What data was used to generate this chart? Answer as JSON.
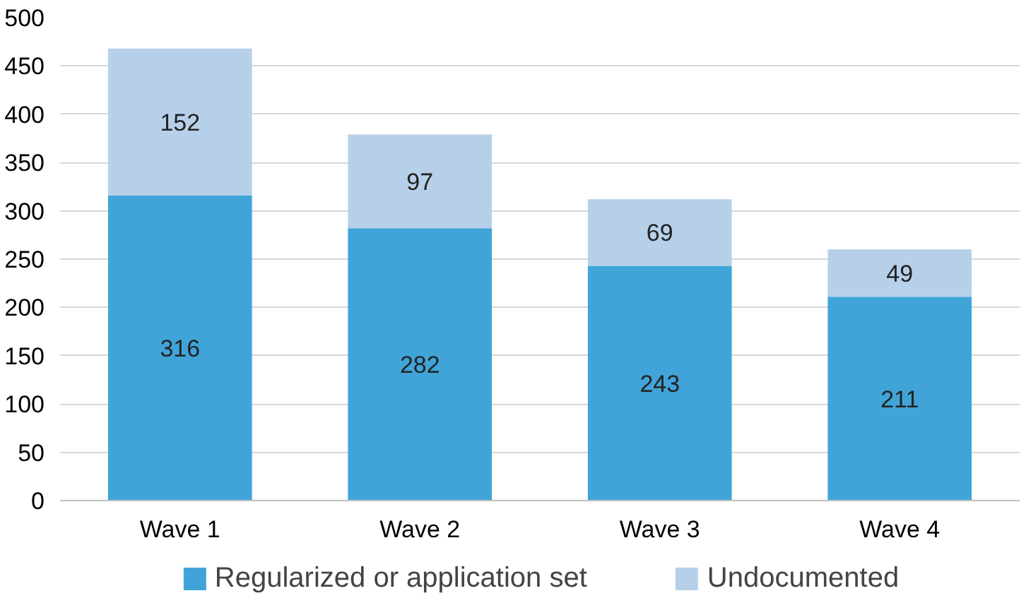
{
  "chart_data": {
    "type": "bar",
    "stacked": true,
    "categories": [
      "Wave 1",
      "Wave 2",
      "Wave 3",
      "Wave 4"
    ],
    "series": [
      {
        "name": "Regularized or application set",
        "color": "#40a4d8",
        "values": [
          316,
          282,
          243,
          211
        ]
      },
      {
        "name": "Undocumented",
        "color": "#b7d0ea",
        "values": [
          152,
          97,
          69,
          49
        ]
      }
    ],
    "ylim": [
      0,
      500
    ],
    "yticks": [
      0,
      50,
      100,
      150,
      200,
      250,
      300,
      350,
      400,
      450,
      500
    ],
    "grid": "y",
    "legend": "bottom",
    "data_labels": true
  }
}
